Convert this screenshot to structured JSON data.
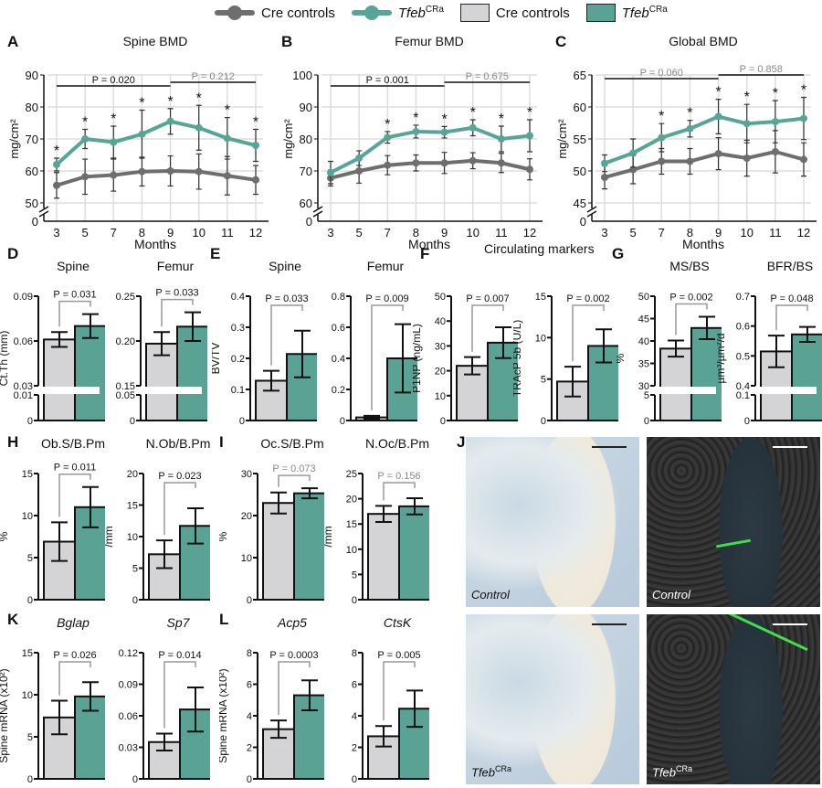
{
  "legend": {
    "items": [
      {
        "label": "Cre controls",
        "kind": "line",
        "color": "#6e6e6e"
      },
      {
        "label": "Tfeb",
        "sup": "CRa",
        "kind": "line",
        "color": "#56a596"
      },
      {
        "label": "Cre controls",
        "kind": "bar",
        "color": "#d4d4d6"
      },
      {
        "label": "Tfeb",
        "sup": "CRa",
        "kind": "bar",
        "color": "#5aa394"
      }
    ]
  },
  "panel_letters": [
    "A",
    "B",
    "C",
    "D",
    "E",
    "F",
    "G",
    "H",
    "I",
    "J",
    "K",
    "L"
  ],
  "group_titles": {
    "F": "Circulating markers"
  },
  "colors": {
    "control": "#6e6e6e",
    "tfeb": "#56a596",
    "bar_control": "#d4d4d6",
    "bar_tfeb": "#5aa394",
    "red_dot": "#d0202a",
    "grey_dot": "#777777",
    "pale_dot": "#d8eee8"
  },
  "images": [
    {
      "label": "Control",
      "type": "brightfield",
      "scale_bar": "#222"
    },
    {
      "label": "Control",
      "type": "fluorescence",
      "scale_bar": "#fff"
    },
    {
      "label": "Tfeb",
      "sup": "CRa",
      "type": "brightfield",
      "scale_bar": "#222"
    },
    {
      "label": "Tfeb",
      "sup": "CRa",
      "type": "fluorescence",
      "scale_bar": "#fff"
    }
  ],
  "chart_data": [
    {
      "type": "line",
      "title": "Spine BMD",
      "xlabel": "Months",
      "ylabel": "mg/cm²",
      "ylim": [
        50,
        90
      ],
      "yticks": [
        50,
        60,
        70,
        80,
        90
      ],
      "zero_tick": "0",
      "x": [
        "3",
        "5",
        "7",
        "8",
        "9",
        "10",
        "11",
        "12"
      ],
      "series": [
        {
          "group": "control",
          "values": [
            55.5,
            58.2,
            58.7,
            59.8,
            60,
            59.8,
            58.5,
            57.2
          ],
          "sd": [
            4,
            5.5,
            5,
            4.5,
            4.7,
            5.5,
            6,
            4.5
          ]
        },
        {
          "group": "tfeb",
          "values": [
            62,
            70,
            69,
            71.5,
            75.5,
            73.5,
            70.2,
            68
          ],
          "sd": [
            2,
            3,
            5,
            7.5,
            4,
            7,
            6.5,
            5
          ]
        }
      ],
      "stars": [
        "3",
        "5",
        "7",
        "8",
        "9",
        "10",
        "11",
        "12"
      ],
      "star_symbol": "*",
      "brackets": [
        {
          "from": "3",
          "to": "9",
          "label": "P = 0.020",
          "significant": true
        },
        {
          "from": "9",
          "to": "12",
          "label": "P = 0.212",
          "significant": false
        }
      ],
      "grid": true
    },
    {
      "type": "line",
      "title": "Femur BMD",
      "xlabel": "Months",
      "ylabel": "mg/cm²",
      "ylim": [
        60,
        100
      ],
      "yticks": [
        60,
        70,
        80,
        90,
        100
      ],
      "zero_tick": "0",
      "x": [
        "3",
        "5",
        "7",
        "8",
        "9",
        "10",
        "11",
        "12"
      ],
      "series": [
        {
          "group": "control",
          "values": [
            67.8,
            70,
            71.8,
            72.5,
            72.5,
            73.2,
            72.5,
            70.5
          ],
          "sd": [
            2.5,
            3.8,
            3,
            2.5,
            3.3,
            2.5,
            3,
            3.3
          ]
        },
        {
          "group": "tfeb",
          "values": [
            69.5,
            74,
            80.5,
            82.3,
            82.1,
            83.5,
            80,
            81
          ],
          "sd": [
            3.5,
            2.3,
            1.8,
            2,
            1.8,
            2.5,
            4,
            5
          ]
        }
      ],
      "stars": [
        "7",
        "8",
        "9",
        "10",
        "11",
        "12"
      ],
      "star_symbol": "*",
      "brackets": [
        {
          "from": "3",
          "to": "9",
          "label": "P = 0.001",
          "significant": true
        },
        {
          "from": "9",
          "to": "12",
          "label": "P = 0.675",
          "significant": false
        }
      ],
      "grid": true
    },
    {
      "type": "line",
      "title": "Global BMD",
      "xlabel": "Months",
      "ylabel": "mg/cm²",
      "ylim": [
        45,
        65
      ],
      "yticks": [
        45,
        50,
        55,
        60,
        65
      ],
      "zero_tick": "0",
      "x": [
        "3",
        "5",
        "7",
        "8",
        "9",
        "10",
        "11",
        "12"
      ],
      "series": [
        {
          "group": "control",
          "values": [
            49,
            50.2,
            51.5,
            51.5,
            52.7,
            52,
            53,
            51.8
          ],
          "sd": [
            1.8,
            2.2,
            2,
            2,
            2.5,
            2.8,
            3.3,
            2.6
          ]
        },
        {
          "group": "tfeb",
          "values": [
            51.2,
            52.8,
            55.2,
            56.6,
            58.5,
            57.4,
            57.7,
            58.2
          ],
          "sd": [
            1.3,
            2.2,
            2.2,
            1.3,
            2.7,
            3,
            3.3,
            3.3
          ]
        }
      ],
      "stars": [
        "7",
        "8",
        "9",
        "10",
        "11",
        "12"
      ],
      "star_symbol": "*",
      "brackets": [
        {
          "from": "3",
          "to": "9",
          "label": "P = 0.060",
          "significant": false
        },
        {
          "from": "9",
          "to": "12",
          "label": "P = 0.858",
          "significant": false
        }
      ],
      "grid": true
    },
    {
      "type": "bar",
      "title": "Spine",
      "ylabel": "Ct.Th (mm)",
      "yticks": [
        "0",
        "0.01",
        "0.03",
        "0.06",
        "0.09"
      ],
      "ytick_values": [
        0,
        0.01,
        0.03,
        0.06,
        0.09
      ],
      "axis_break": [
        0.01,
        0.03
      ],
      "ylim": [
        0,
        0.09
      ],
      "values": [
        0.061,
        0.07
      ],
      "sd": [
        0.005,
        0.008
      ],
      "p": "P = 0.031",
      "significant": true
    },
    {
      "type": "bar",
      "title": "Femur",
      "ylabel": "",
      "yticks": [
        "0",
        "0.05",
        "0.15",
        "0.20",
        "0.25"
      ],
      "ytick_values": [
        0,
        0.05,
        0.15,
        0.2,
        0.25
      ],
      "axis_break": [
        0.05,
        0.15
      ],
      "ylim": [
        0,
        0.25
      ],
      "values": [
        0.197,
        0.216
      ],
      "sd": [
        0.013,
        0.016
      ],
      "p": "P = 0.033",
      "significant": true
    },
    {
      "type": "bar",
      "title": "Spine",
      "ylabel": "BV/TV",
      "yticks": [
        "0",
        "0.1",
        "0.2",
        "0.3",
        "0.4"
      ],
      "ytick_values": [
        0,
        0.1,
        0.2,
        0.3,
        0.4
      ],
      "ylim": [
        0,
        0.4
      ],
      "values": [
        0.128,
        0.214
      ],
      "sd": [
        0.032,
        0.075
      ],
      "p": "P = 0.033",
      "significant": true
    },
    {
      "type": "bar",
      "title": "Femur",
      "ylabel": "",
      "yticks": [
        "0",
        "0.2",
        "0.4",
        "0.6",
        "0.8"
      ],
      "ytick_values": [
        0,
        0.2,
        0.4,
        0.6,
        0.8
      ],
      "ylim": [
        0,
        0.8
      ],
      "values": [
        0.02,
        0.4
      ],
      "sd": [
        0.01,
        0.22
      ],
      "p": "P = 0.009",
      "significant": true
    },
    {
      "type": "bar",
      "title": "",
      "ylabel": "P1NP (ng/mL)",
      "yticks": [
        "0",
        "10",
        "20",
        "30",
        "40",
        "50"
      ],
      "ytick_values": [
        0,
        10,
        20,
        30,
        40,
        50
      ],
      "ylim": [
        0,
        50
      ],
      "values": [
        22,
        31.3
      ],
      "sd": [
        3.5,
        6.2
      ],
      "p": "P = 0.007",
      "significant": true
    },
    {
      "type": "bar",
      "title": "",
      "ylabel": "TRAcP 5b (U/L)",
      "yticks": [
        "0",
        "5",
        "10",
        "15"
      ],
      "ytick_values": [
        0,
        5,
        10,
        15
      ],
      "ylim": [
        0,
        15
      ],
      "values": [
        4.7,
        9.0
      ],
      "sd": [
        1.8,
        2.0
      ],
      "p": "P = 0.002",
      "significant": true
    },
    {
      "type": "bar",
      "title": "MS/BS",
      "ylabel": "%",
      "yticks": [
        "0",
        "5",
        "30",
        "35",
        "40",
        "45",
        "50"
      ],
      "ytick_values": [
        0,
        5,
        30,
        35,
        40,
        45,
        50
      ],
      "axis_break": [
        5,
        30
      ],
      "ylim": [
        0,
        50
      ],
      "values": [
        38.3,
        42.9
      ],
      "sd": [
        1.8,
        2.5
      ],
      "p": "P = 0.002",
      "significant": true
    },
    {
      "type": "bar",
      "title": "BFR/BS",
      "ylabel": "µm³/µm²/d",
      "yticks": [
        "0",
        "0.1",
        "0.4",
        "0.5",
        "0.6",
        "0.7"
      ],
      "ytick_values": [
        0,
        0.1,
        0.4,
        0.5,
        0.6,
        0.7
      ],
      "axis_break": [
        0.1,
        0.4
      ],
      "ylim": [
        0,
        0.7
      ],
      "values": [
        0.515,
        0.572
      ],
      "sd": [
        0.053,
        0.025
      ],
      "p": "P = 0.048",
      "significant": true
    },
    {
      "type": "bar",
      "title": "Ob.S/B.Pm",
      "ylabel": "%",
      "yticks": [
        "0",
        "5",
        "10",
        "15"
      ],
      "ytick_values": [
        0,
        5,
        10,
        15
      ],
      "ylim": [
        0,
        15
      ],
      "values": [
        6.9,
        11.0
      ],
      "sd": [
        2.3,
        2.4
      ],
      "p": "P = 0.011",
      "significant": true
    },
    {
      "type": "bar",
      "title": "N.Ob/B.Pm",
      "ylabel": "/mm",
      "yticks": [
        "0",
        "5",
        "10",
        "15",
        "20"
      ],
      "ytick_values": [
        0,
        5,
        10,
        15,
        20
      ],
      "ylim": [
        0,
        20
      ],
      "values": [
        7.2,
        11.7
      ],
      "sd": [
        2.2,
        2.8
      ],
      "p": "P = 0.023",
      "significant": true
    },
    {
      "type": "bar",
      "title": "Oc.S/B.Pm",
      "ylabel": "%",
      "yticks": [
        "0",
        "10",
        "20",
        "30"
      ],
      "ytick_values": [
        0,
        10,
        20,
        30
      ],
      "ylim": [
        0,
        30
      ],
      "values": [
        23,
        25.3
      ],
      "sd": [
        2.5,
        1.2
      ],
      "p": "P = 0.073",
      "significant": false
    },
    {
      "type": "bar",
      "title": "N.Oc/B.Pm",
      "ylabel": "/mm",
      "yticks": [
        "0",
        "5",
        "10",
        "15",
        "20",
        "25"
      ],
      "ytick_values": [
        0,
        5,
        10,
        15,
        20,
        25
      ],
      "ylim": [
        0,
        25
      ],
      "values": [
        17,
        18.5
      ],
      "sd": [
        1.6,
        1.6
      ],
      "p": "P = 0.156",
      "significant": false
    },
    {
      "type": "bar",
      "title": "Bglap",
      "italic": true,
      "ylabel": "Spine mRNA (x10²)",
      "yticks": [
        "0",
        "5",
        "10",
        "15"
      ],
      "ytick_values": [
        0,
        5,
        10,
        15
      ],
      "ylim": [
        0,
        15
      ],
      "values": [
        7.3,
        9.8
      ],
      "sd": [
        2.0,
        1.7
      ],
      "p": "P = 0.026",
      "significant": true
    },
    {
      "type": "bar",
      "title": "Sp7",
      "italic": true,
      "ylabel": "",
      "yticks": [
        "0",
        "0.03",
        "0.06",
        "0.09",
        "0.12"
      ],
      "ytick_values": [
        0,
        0.03,
        0.06,
        0.09,
        0.12
      ],
      "ylim": [
        0,
        0.12
      ],
      "values": [
        0.035,
        0.066
      ],
      "sd": [
        0.008,
        0.021
      ],
      "p": "P = 0.014",
      "significant": true
    },
    {
      "type": "bar",
      "title": "Acp5",
      "italic": true,
      "ylabel": "Spine mRNA (x10²)",
      "yticks": [
        "0",
        "2",
        "4",
        "6",
        "8"
      ],
      "ytick_values": [
        0,
        2,
        4,
        6,
        8
      ],
      "ylim": [
        0,
        8
      ],
      "values": [
        3.15,
        5.3
      ],
      "sd": [
        0.55,
        0.95
      ],
      "p": "P = 0.0003",
      "significant": true
    },
    {
      "type": "bar",
      "title": "CtsK",
      "italic": true,
      "ylabel": "",
      "yticks": [
        "0",
        "2",
        "4",
        "6",
        "8"
      ],
      "ytick_values": [
        0,
        2,
        4,
        6,
        8
      ],
      "ylim": [
        0,
        8
      ],
      "values": [
        2.7,
        4.45
      ],
      "sd": [
        0.65,
        1.15
      ],
      "p": "P = 0.005",
      "significant": true
    }
  ]
}
